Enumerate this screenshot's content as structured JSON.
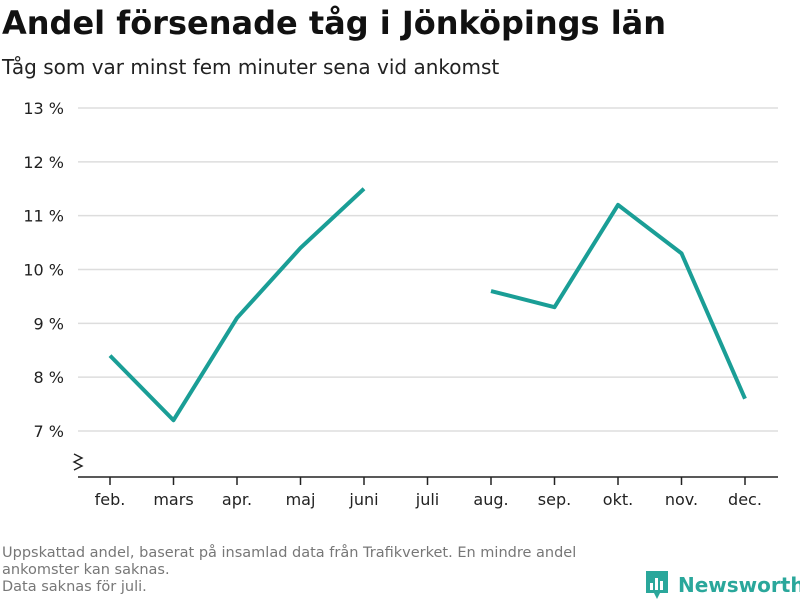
{
  "header": {
    "title": "Andel försenade tåg i Jönköpings län",
    "subtitle": "Tåg som var minst fem minuter sena vid ankomst"
  },
  "chart_data": {
    "type": "line",
    "title": "Andel försenade tåg i Jönköpings län",
    "subtitle": "Tåg som var minst fem minuter sena vid ankomst",
    "xlabel": "",
    "ylabel": "",
    "categories": [
      "feb.",
      "mars",
      "apr.",
      "maj",
      "juni",
      "juli",
      "aug.",
      "sep.",
      "okt.",
      "nov.",
      "dec."
    ],
    "series": [
      {
        "values": [
          8.4,
          7.2,
          9.1,
          10.4,
          11.5,
          null,
          9.6,
          9.3,
          11.2,
          10.3,
          7.6
        ]
      }
    ],
    "yticks": [
      7,
      8,
      9,
      10,
      11,
      12,
      13
    ],
    "ytick_labels": [
      "7 %",
      "8 %",
      "9 %",
      "10 %",
      "11 %",
      "12 %",
      "13 %"
    ],
    "ylim": [
      7,
      13
    ],
    "y_axis_break": true,
    "grid": true,
    "line_color": "#1a9e96",
    "grid_color": "#dddddd"
  },
  "footer": {
    "note_lines": [
      "Uppskattad andel, baserat på insamlad data från Trafikverket. En mindre andel ankomster kan saknas.",
      "Data saknas för juli."
    ],
    "brand": "Newsworthy",
    "brand_icon": "newsworthy-logo-icon",
    "brand_color": "#2aa79b"
  }
}
